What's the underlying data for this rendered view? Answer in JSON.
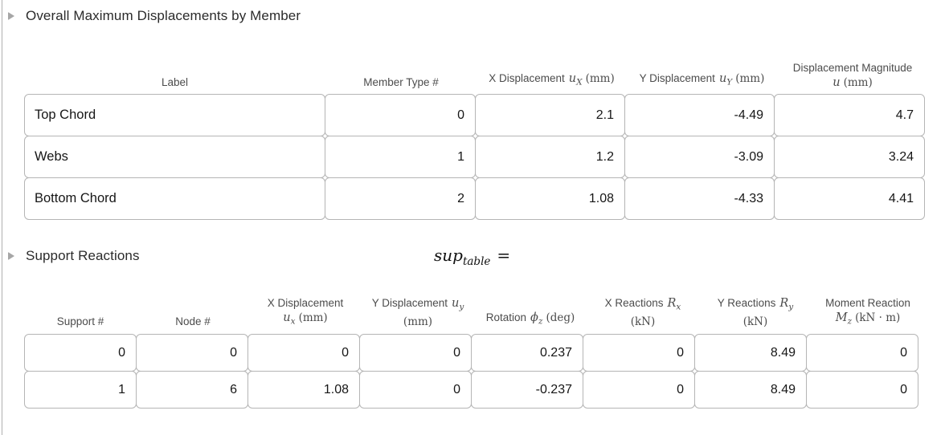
{
  "section1": {
    "title": "Overall Maximum Displacements by Member"
  },
  "table1": {
    "headers": {
      "label": "Label",
      "member_type": "Member Type #",
      "x_disp": {
        "prefix": "X Displacement",
        "var": "u",
        "sub": "X",
        "unit": "(mm)"
      },
      "y_disp": {
        "prefix": "Y Displacement",
        "var": "u",
        "sub": "Y",
        "unit": "(mm)"
      },
      "magnitude": {
        "line1": "Displacement Magnitude",
        "var": "u",
        "unit": "(mm)"
      }
    },
    "rows": [
      {
        "label": "Top Chord",
        "member_type": "0",
        "x": "2.1",
        "y": "-4.49",
        "mag": "4.7"
      },
      {
        "label": "Webs",
        "member_type": "1",
        "x": "1.2",
        "y": "-3.09",
        "mag": "3.24"
      },
      {
        "label": "Bottom Chord",
        "member_type": "2",
        "x": "1.08",
        "y": "-4.33",
        "mag": "4.41"
      }
    ]
  },
  "section2": {
    "title": "Support Reactions",
    "expression": {
      "var": "sup",
      "sub": "table",
      "equals": "="
    }
  },
  "table2": {
    "headers": {
      "support": "Support #",
      "node": "Node #",
      "x_disp": {
        "line1": "X Displacement",
        "var": "u",
        "sub": "x",
        "unit": "(mm)"
      },
      "y_disp": {
        "prefix": "Y Displacement",
        "var": "u",
        "sub": "y",
        "unit": "(mm)"
      },
      "rotation": {
        "prefix": "Rotation",
        "var": "ϕ",
        "sub": "z",
        "unit": "(deg)"
      },
      "x_react": {
        "prefix": "X Reactions",
        "var": "R",
        "sub": "x",
        "unit": "(kN)"
      },
      "y_react": {
        "prefix": "Y Reactions",
        "var": "R",
        "sub": "y",
        "unit": "(kN)"
      },
      "moment": {
        "line1": "Moment Reaction",
        "var": "M",
        "sub": "z",
        "unit": "(kN · m)"
      }
    },
    "rows": [
      {
        "support": "0",
        "node": "0",
        "x_disp": "0",
        "y_disp": "0",
        "rotation": "0.237",
        "x_react": "0",
        "y_react": "8.49",
        "moment": "0"
      },
      {
        "support": "1",
        "node": "6",
        "x_disp": "1.08",
        "y_disp": "0",
        "rotation": "-0.237",
        "x_react": "0",
        "y_react": "8.49",
        "moment": "0"
      }
    ]
  }
}
